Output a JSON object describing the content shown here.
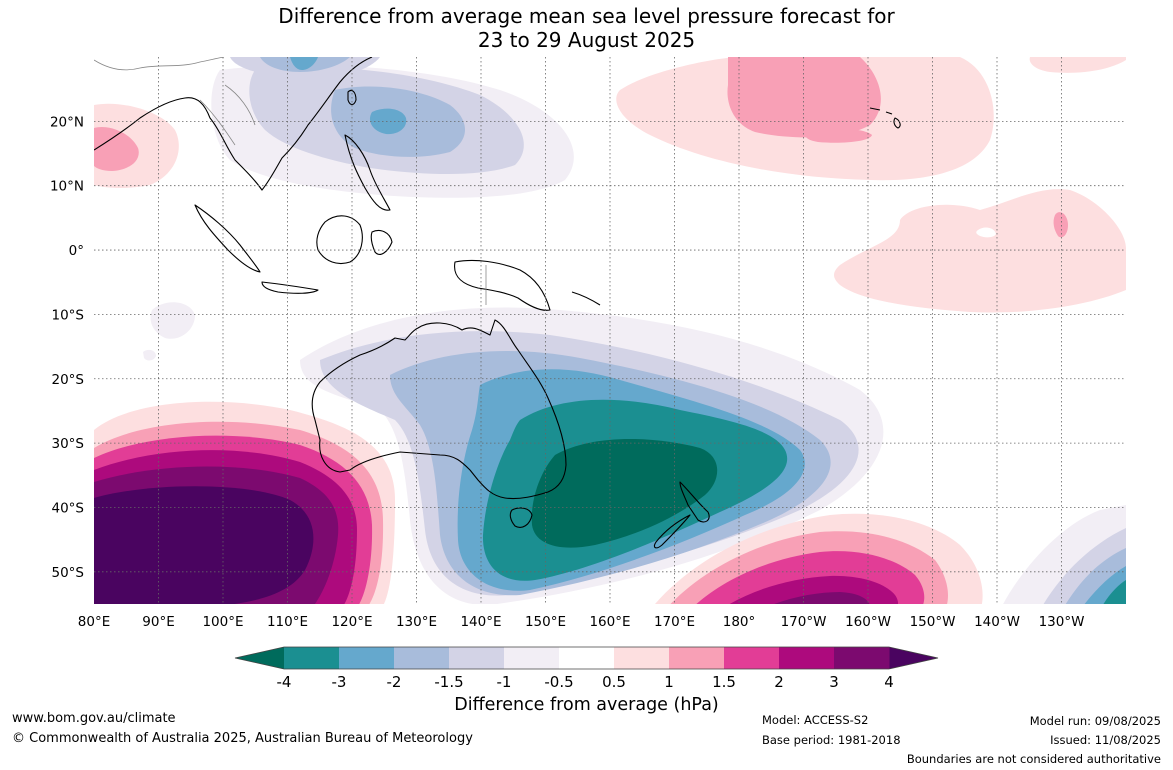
{
  "title": {
    "line1": "Difference from average mean sea level pressure forecast for",
    "line2": "23 to 29 August 2025"
  },
  "map": {
    "lat_labels": [
      "20°N",
      "10°N",
      "0°",
      "10°S",
      "20°S",
      "30°S",
      "40°S",
      "50°S"
    ],
    "lon_labels": [
      "80°E",
      "90°E",
      "100°E",
      "110°E",
      "120°E",
      "130°E",
      "140°E",
      "150°E",
      "160°E",
      "170°E",
      "180°",
      "170°W",
      "160°W",
      "150°W",
      "140°W",
      "130°W"
    ],
    "extent": {
      "lon_min": 80,
      "lon_max": 240,
      "lat_min": -55,
      "lat_max": 30
    }
  },
  "legend": {
    "title": "Difference from average (hPa)",
    "ticks": [
      "-4",
      "-3",
      "-2",
      "-1.5",
      "-1",
      "-0.5",
      "0.5",
      "1",
      "1.5",
      "2",
      "3",
      "4"
    ],
    "colors": [
      "#006b5c",
      "#1b8f91",
      "#65a8cd",
      "#a8bcdb",
      "#d3d3e6",
      "#f2eef5",
      "#ffffff",
      "#fddfe0",
      "#f8a0b6",
      "#e23d96",
      "#ad0a7d",
      "#7c0a6f",
      "#4a0460"
    ]
  },
  "footer": {
    "url": "www.bom.gov.au/climate",
    "copyright": "© Commonwealth of Australia 2025, Australian Bureau of Meteorology",
    "model": "Model: ACCESS-S2",
    "base_period": "Base period: 1981-2018",
    "model_run": "Model run: 09/08/2025",
    "issued": "Issued: 11/08/2025",
    "disclaimer": "Boundaries are not considered authoritative"
  }
}
